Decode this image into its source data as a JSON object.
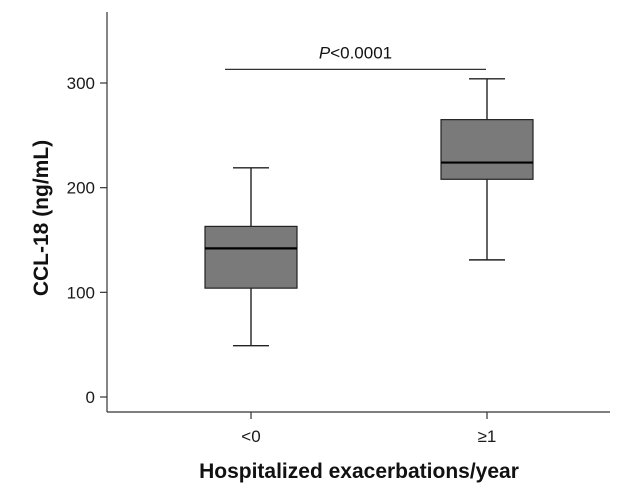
{
  "chart_data": {
    "type": "box",
    "ylabel": "CCL-18 (ng/mL)",
    "xlabel": "Hospitalized exacerbations/year",
    "ylim": [
      -15,
      375
    ],
    "yticks": [
      0,
      100,
      200,
      300
    ],
    "categories": [
      "<0",
      "≥1"
    ],
    "boxes": [
      {
        "category": "<0",
        "min": 49,
        "q1": 104,
        "median": 142,
        "q3": 163,
        "max": 219
      },
      {
        "category": "≥1",
        "min": 131,
        "q1": 208,
        "median": 224,
        "q3": 265,
        "max": 304
      }
    ],
    "annotation": {
      "prefix": "P",
      "value": "<0.0001",
      "y": 313
    },
    "box_color": "#7a7a7a",
    "grid": false
  }
}
